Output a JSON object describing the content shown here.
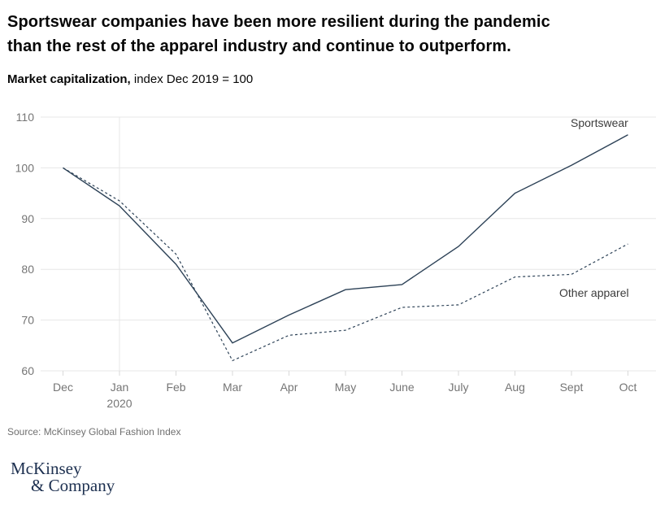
{
  "chart_data": {
    "type": "line",
    "title": "Sportswear companies have been more resilient during the pandemic\nthan the rest of the apparel industry and continue to outperform.",
    "subtitle_bold": "Market capitalization,",
    "subtitle_rest": " index Dec 2019 = 100",
    "categories": [
      "Dec",
      "Jan",
      "Feb",
      "Mar",
      "Apr",
      "May",
      "June",
      "July",
      "Aug",
      "Sept",
      "Oct"
    ],
    "x_sub_labels": [
      {
        "index": 1,
        "label": "2020"
      }
    ],
    "series": [
      {
        "name": "Sportswear",
        "line_style": "solid",
        "values": [
          100,
          92.5,
          81,
          65.5,
          71,
          76,
          77,
          84.5,
          95,
          100.5,
          106.5
        ]
      },
      {
        "name": "Other apparel",
        "line_style": "dashed",
        "values": [
          100,
          93.5,
          83,
          62,
          67,
          68,
          72.5,
          73,
          78.5,
          79,
          85
        ]
      }
    ],
    "ylim": [
      60,
      110
    ],
    "yticks": [
      60,
      70,
      80,
      90,
      100,
      110
    ],
    "grid": "horizontal gridlines; one vertical gridline at Jan 2020",
    "legend_position": "inline labels at right end of lines",
    "colors": {
      "line": "#2d4257",
      "grid": "#e7e7e7",
      "tick": "#d9d9d9",
      "axis_text": "#757575",
      "series_label_text": "#3c3c3c",
      "title_text": "#070707",
      "source_text": "#707070",
      "logo_navy": "#1d3050",
      "background": "#ffffff"
    }
  },
  "source_note": "Source: McKinsey Global Fashion Index",
  "logo": {
    "line1": "McKinsey",
    "line2": "& Company"
  }
}
